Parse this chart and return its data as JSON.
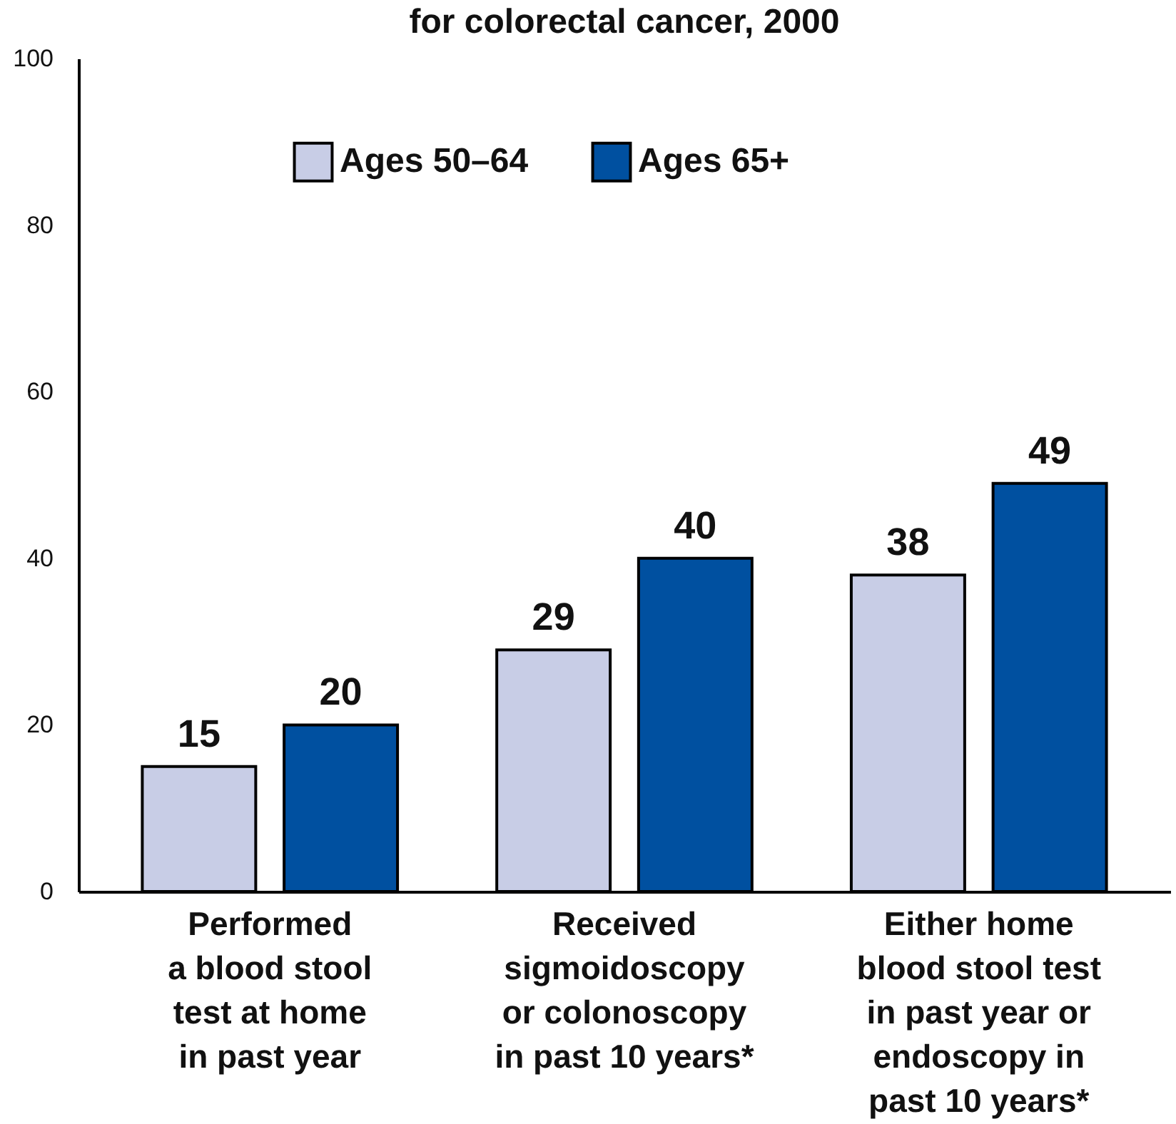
{
  "chart_data": {
    "type": "bar",
    "title": "for colorectal cancer, 2000",
    "categories": [
      "Performed\na blood stool\ntest at home\nin past year",
      "Received\nsigmoidoscopy\nor colonoscopy\nin past 10 years*",
      "Either home\nblood stool test\nin past year or\nendoscopy in\npast 10 years*"
    ],
    "series": [
      {
        "name": "Ages 50–64",
        "color": "#c8cde6",
        "values": [
          15,
          29,
          38
        ]
      },
      {
        "name": "Ages 65+",
        "color": "#0050a0",
        "values": [
          20,
          40,
          49
        ]
      }
    ],
    "ylim": [
      0,
      100
    ],
    "yticks": [
      0,
      20,
      40,
      60,
      80,
      100
    ],
    "grid": false,
    "legend": "top",
    "data_labels": true
  }
}
